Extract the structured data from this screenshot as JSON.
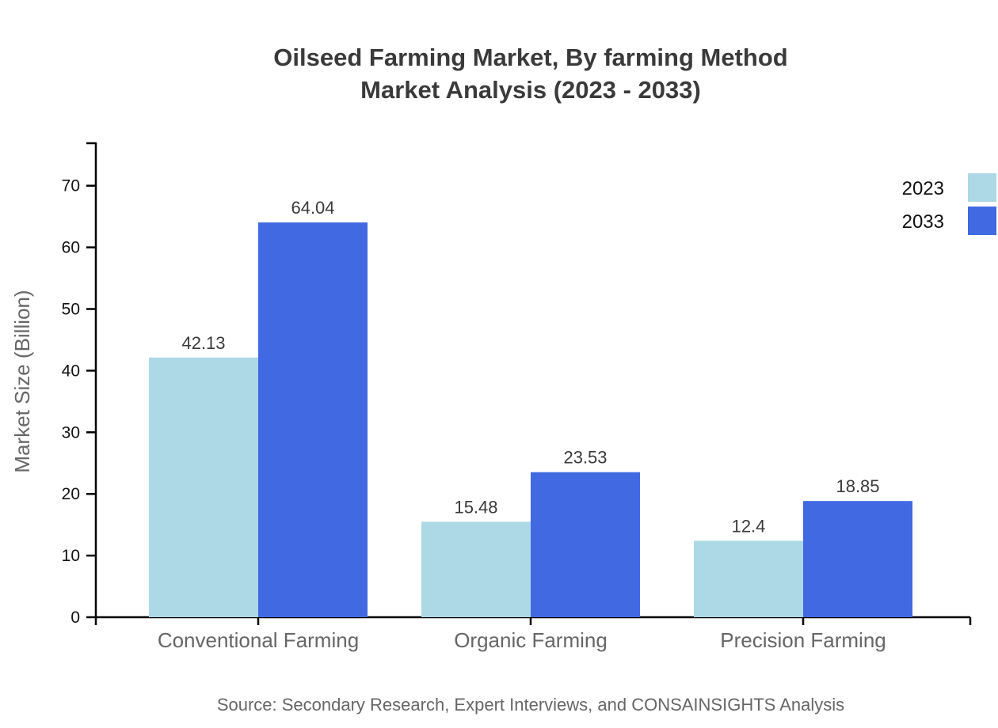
{
  "title": {
    "line1": "Oilseed Farming Market, By farming Method",
    "line2": "Market Analysis (2023 - 2033)"
  },
  "source": {
    "text": "Source: Secondary Research, Expert Interviews, and CONSAINSIGHTS Analysis"
  },
  "chart_data": {
    "type": "bar",
    "title": "Oilseed Farming Market, By farming Method Market Analysis (2023 - 2033)",
    "categories": [
      "Conventional Farming",
      "Organic Farming",
      "Precision Farming"
    ],
    "series": [
      {
        "name": "2023",
        "color": "#add8e6",
        "values": [
          42.13,
          15.48,
          12.4
        ],
        "labels": [
          "42.13",
          "15.48",
          "12.4"
        ]
      },
      {
        "name": "2033",
        "color": "#4169e1",
        "values": [
          64.04,
          23.53,
          18.85
        ],
        "labels": [
          "64.04",
          "23.53",
          "18.85"
        ]
      }
    ],
    "xlabel": "",
    "ylabel": "Market Size (Billion)",
    "ylim": [
      0,
      77
    ],
    "yticks": [
      0,
      10,
      20,
      30,
      40,
      50,
      60,
      70
    ],
    "grid": false,
    "legend_position": "top-right",
    "background_color": "#ffffff",
    "axis_color": "#000000"
  }
}
